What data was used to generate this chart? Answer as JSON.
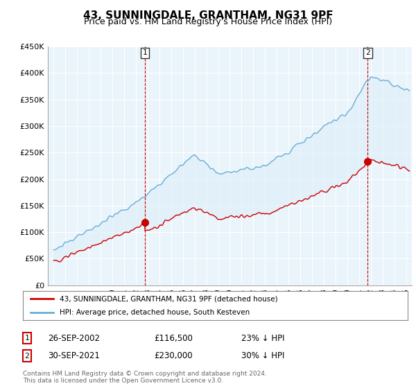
{
  "title": "43, SUNNINGDALE, GRANTHAM, NG31 9PF",
  "subtitle": "Price paid vs. HM Land Registry's House Price Index (HPI)",
  "title_fontsize": 11,
  "subtitle_fontsize": 9,
  "ylim": [
    0,
    450000
  ],
  "yticks": [
    0,
    50000,
    100000,
    150000,
    200000,
    250000,
    300000,
    350000,
    400000,
    450000
  ],
  "hpi_color": "#6aaed6",
  "price_color": "#cc0000",
  "fill_color": "#ddeef8",
  "marker_color": "#cc0000",
  "legend_label_price": "43, SUNNINGDALE, GRANTHAM, NG31 9PF (detached house)",
  "legend_label_hpi": "HPI: Average price, detached house, South Kesteven",
  "sale1_year": 2002.75,
  "sale1_price": 116500,
  "sale1_date": "26-SEP-2002",
  "sale1_pct": "23% ↓ HPI",
  "sale2_year": 2021.75,
  "sale2_price": 230000,
  "sale2_date": "30-SEP-2021",
  "sale2_pct": "30% ↓ HPI",
  "footnote": "Contains HM Land Registry data © Crown copyright and database right 2024.\nThis data is licensed under the Open Government Licence v3.0.",
  "background_color": "#ffffff",
  "plot_bg_color": "#eaf4fb",
  "grid_color": "#ffffff"
}
